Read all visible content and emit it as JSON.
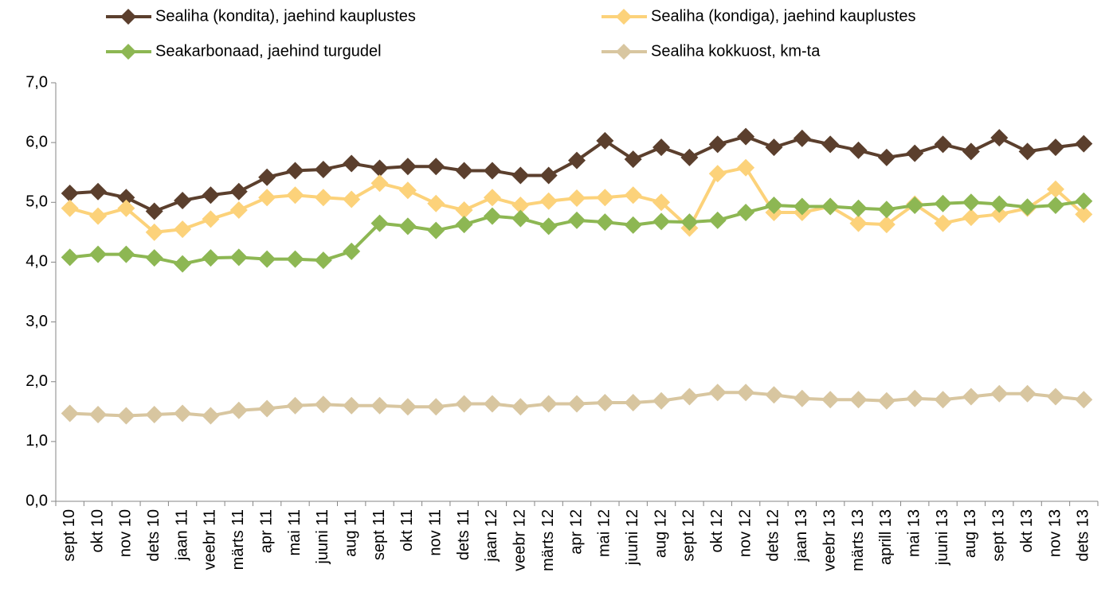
{
  "chart_data": {
    "type": "line",
    "categories": [
      "sept 10",
      "okt 10",
      "nov 10",
      "dets 10",
      "jaan 11",
      "veebr 11",
      "märts 11",
      "apr 11",
      "mai 11",
      "juuni 11",
      "aug 11",
      "sept 11",
      "okt 11",
      "nov 11",
      "dets 11",
      "jaan 12",
      "veebr 12",
      "märts 12",
      "apr 12",
      "mai 12",
      "juuni 12",
      "aug 12",
      "sept 12",
      "okt 12",
      "nov 12",
      "dets 12",
      "jaan 13",
      "veebr 13",
      "märts 13",
      "aprill 13",
      "mai 13",
      "juuni 13",
      "aug 13",
      "sept 13",
      "okt 13",
      "nov 13",
      "dets 13"
    ],
    "series": [
      {
        "name": "Sealiha (kondita), jaehind kauplustes",
        "color": "#5b3f2d",
        "values": [
          5.15,
          5.18,
          5.08,
          4.85,
          5.03,
          5.12,
          5.18,
          5.42,
          5.53,
          5.55,
          5.65,
          5.57,
          5.6,
          5.6,
          5.53,
          5.53,
          5.45,
          5.45,
          5.7,
          6.03,
          5.72,
          5.92,
          5.75,
          5.97,
          6.1,
          5.92,
          6.07,
          5.97,
          5.87,
          5.75,
          5.82,
          5.97,
          5.85,
          6.08,
          5.85,
          5.92,
          5.98
        ]
      },
      {
        "name": "Sealiha (kondiga), jaehind kauplustes",
        "color": "#fcd27a",
        "values": [
          4.9,
          4.77,
          4.9,
          4.5,
          4.55,
          4.72,
          4.87,
          5.08,
          5.12,
          5.08,
          5.05,
          5.32,
          5.2,
          4.98,
          4.87,
          5.08,
          4.95,
          5.02,
          5.07,
          5.08,
          5.12,
          5.0,
          4.57,
          5.48,
          5.58,
          4.83,
          4.83,
          4.93,
          4.65,
          4.63,
          4.97,
          4.65,
          4.75,
          4.8,
          4.9,
          5.22,
          4.8
        ]
      },
      {
        "name": "Seakarbonaad, jaehind turgudel",
        "color": "#8db753",
        "values": [
          4.08,
          4.13,
          4.13,
          4.07,
          3.97,
          4.07,
          4.08,
          4.05,
          4.05,
          4.03,
          4.18,
          4.65,
          4.6,
          4.53,
          4.63,
          4.77,
          4.73,
          4.6,
          4.7,
          4.67,
          4.62,
          4.68,
          4.67,
          4.7,
          4.83,
          4.95,
          4.93,
          4.93,
          4.9,
          4.88,
          4.95,
          4.98,
          5.0,
          4.97,
          4.92,
          4.95,
          5.02
        ]
      },
      {
        "name": "Sealiha kokkuost, km-ta",
        "color": "#d8c6a0",
        "values": [
          1.47,
          1.45,
          1.43,
          1.45,
          1.47,
          1.43,
          1.52,
          1.55,
          1.6,
          1.62,
          1.6,
          1.6,
          1.58,
          1.58,
          1.63,
          1.63,
          1.58,
          1.63,
          1.63,
          1.65,
          1.65,
          1.68,
          1.75,
          1.82,
          1.82,
          1.78,
          1.72,
          1.7,
          1.7,
          1.68,
          1.72,
          1.7,
          1.75,
          1.8,
          1.8,
          1.75,
          1.7
        ]
      }
    ],
    "ylim": [
      0,
      7
    ],
    "yticks": [
      {
        "value": 0,
        "label": "0,0"
      },
      {
        "value": 1,
        "label": "1,0"
      },
      {
        "value": 2,
        "label": "2,0"
      },
      {
        "value": 3,
        "label": "3,0"
      },
      {
        "value": 4,
        "label": "4,0"
      },
      {
        "value": 5,
        "label": "5,0"
      },
      {
        "value": 6,
        "label": "6,0"
      },
      {
        "value": 7,
        "label": "7,0"
      }
    ],
    "grid": false,
    "legend": "top"
  }
}
